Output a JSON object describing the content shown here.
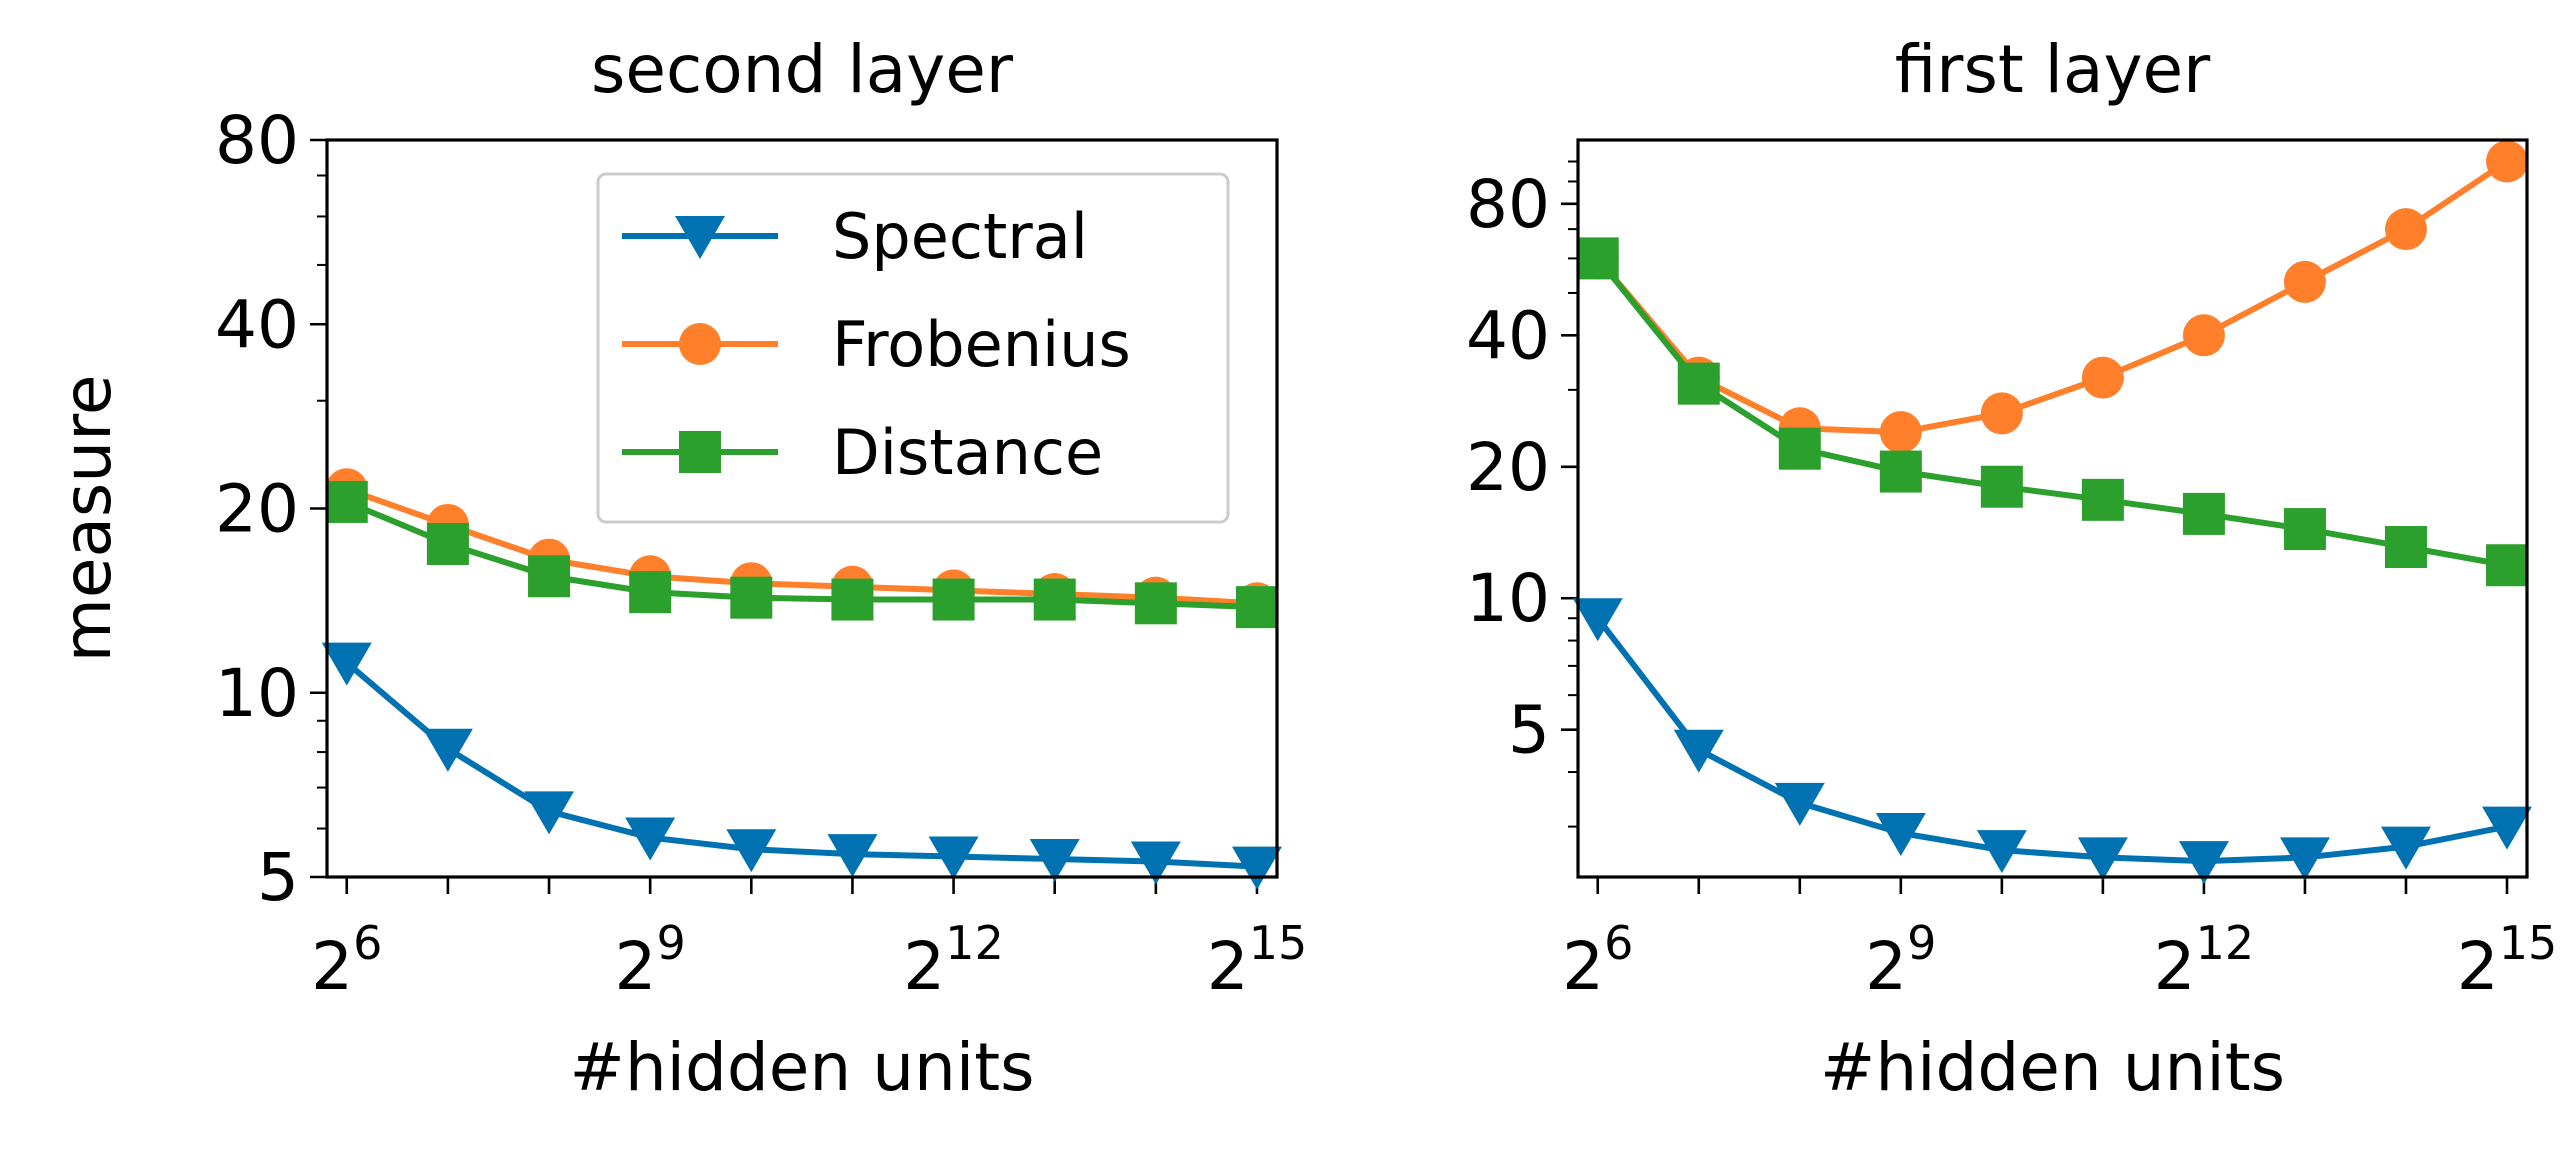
{
  "chart_data": [
    {
      "type": "line",
      "title": "second layer",
      "xlabel": "#hidden units",
      "ylabel": "measure",
      "xscale": "log2",
      "yscale": "log",
      "x_exponents": [
        6,
        7,
        8,
        9,
        10,
        11,
        12,
        13,
        14,
        15
      ],
      "xticks": [
        6,
        9,
        12,
        15
      ],
      "yticks": [
        5,
        10,
        20,
        40,
        80
      ],
      "ylim": [
        5,
        80
      ],
      "grid": false,
      "legend": "top-right",
      "series": [
        {
          "name": "Spectral",
          "color": "#0072b2",
          "marker": "triangle-down",
          "values": [
            11.2,
            8.1,
            6.4,
            5.8,
            5.55,
            5.45,
            5.4,
            5.35,
            5.3,
            5.2
          ]
        },
        {
          "name": "Frobenius",
          "color": "#ff7f2a",
          "marker": "circle",
          "values": [
            21.5,
            18.8,
            16.5,
            15.5,
            15.1,
            14.9,
            14.7,
            14.5,
            14.3,
            14.0
          ]
        },
        {
          "name": "Distance",
          "color": "#2ca02c",
          "marker": "square",
          "values": [
            20.5,
            17.5,
            15.5,
            14.6,
            14.3,
            14.2,
            14.2,
            14.2,
            14.0,
            13.8
          ]
        }
      ]
    },
    {
      "type": "line",
      "title": "first layer",
      "xlabel": "#hidden units",
      "ylabel": "",
      "xscale": "log2",
      "yscale": "log",
      "x_exponents": [
        6,
        7,
        8,
        9,
        10,
        11,
        12,
        13,
        14,
        15
      ],
      "xticks": [
        6,
        9,
        12,
        15
      ],
      "yticks": [
        5,
        10,
        20,
        40,
        80
      ],
      "ylim": [
        2.3,
        112
      ],
      "grid": false,
      "series": [
        {
          "name": "Spectral",
          "color": "#0072b2",
          "marker": "triangle-down",
          "values": [
            9.0,
            4.5,
            3.4,
            2.9,
            2.65,
            2.55,
            2.5,
            2.55,
            2.7,
            3.0
          ]
        },
        {
          "name": "Frobenius",
          "color": "#ff7f2a",
          "marker": "circle",
          "values": [
            60,
            32,
            24.5,
            24,
            26.5,
            32,
            40,
            53,
            70,
            100
          ]
        },
        {
          "name": "Distance",
          "color": "#2ca02c",
          "marker": "square",
          "values": [
            60,
            31,
            22,
            19.5,
            18,
            16.8,
            15.6,
            14.4,
            13.1,
            11.9
          ]
        }
      ]
    }
  ]
}
